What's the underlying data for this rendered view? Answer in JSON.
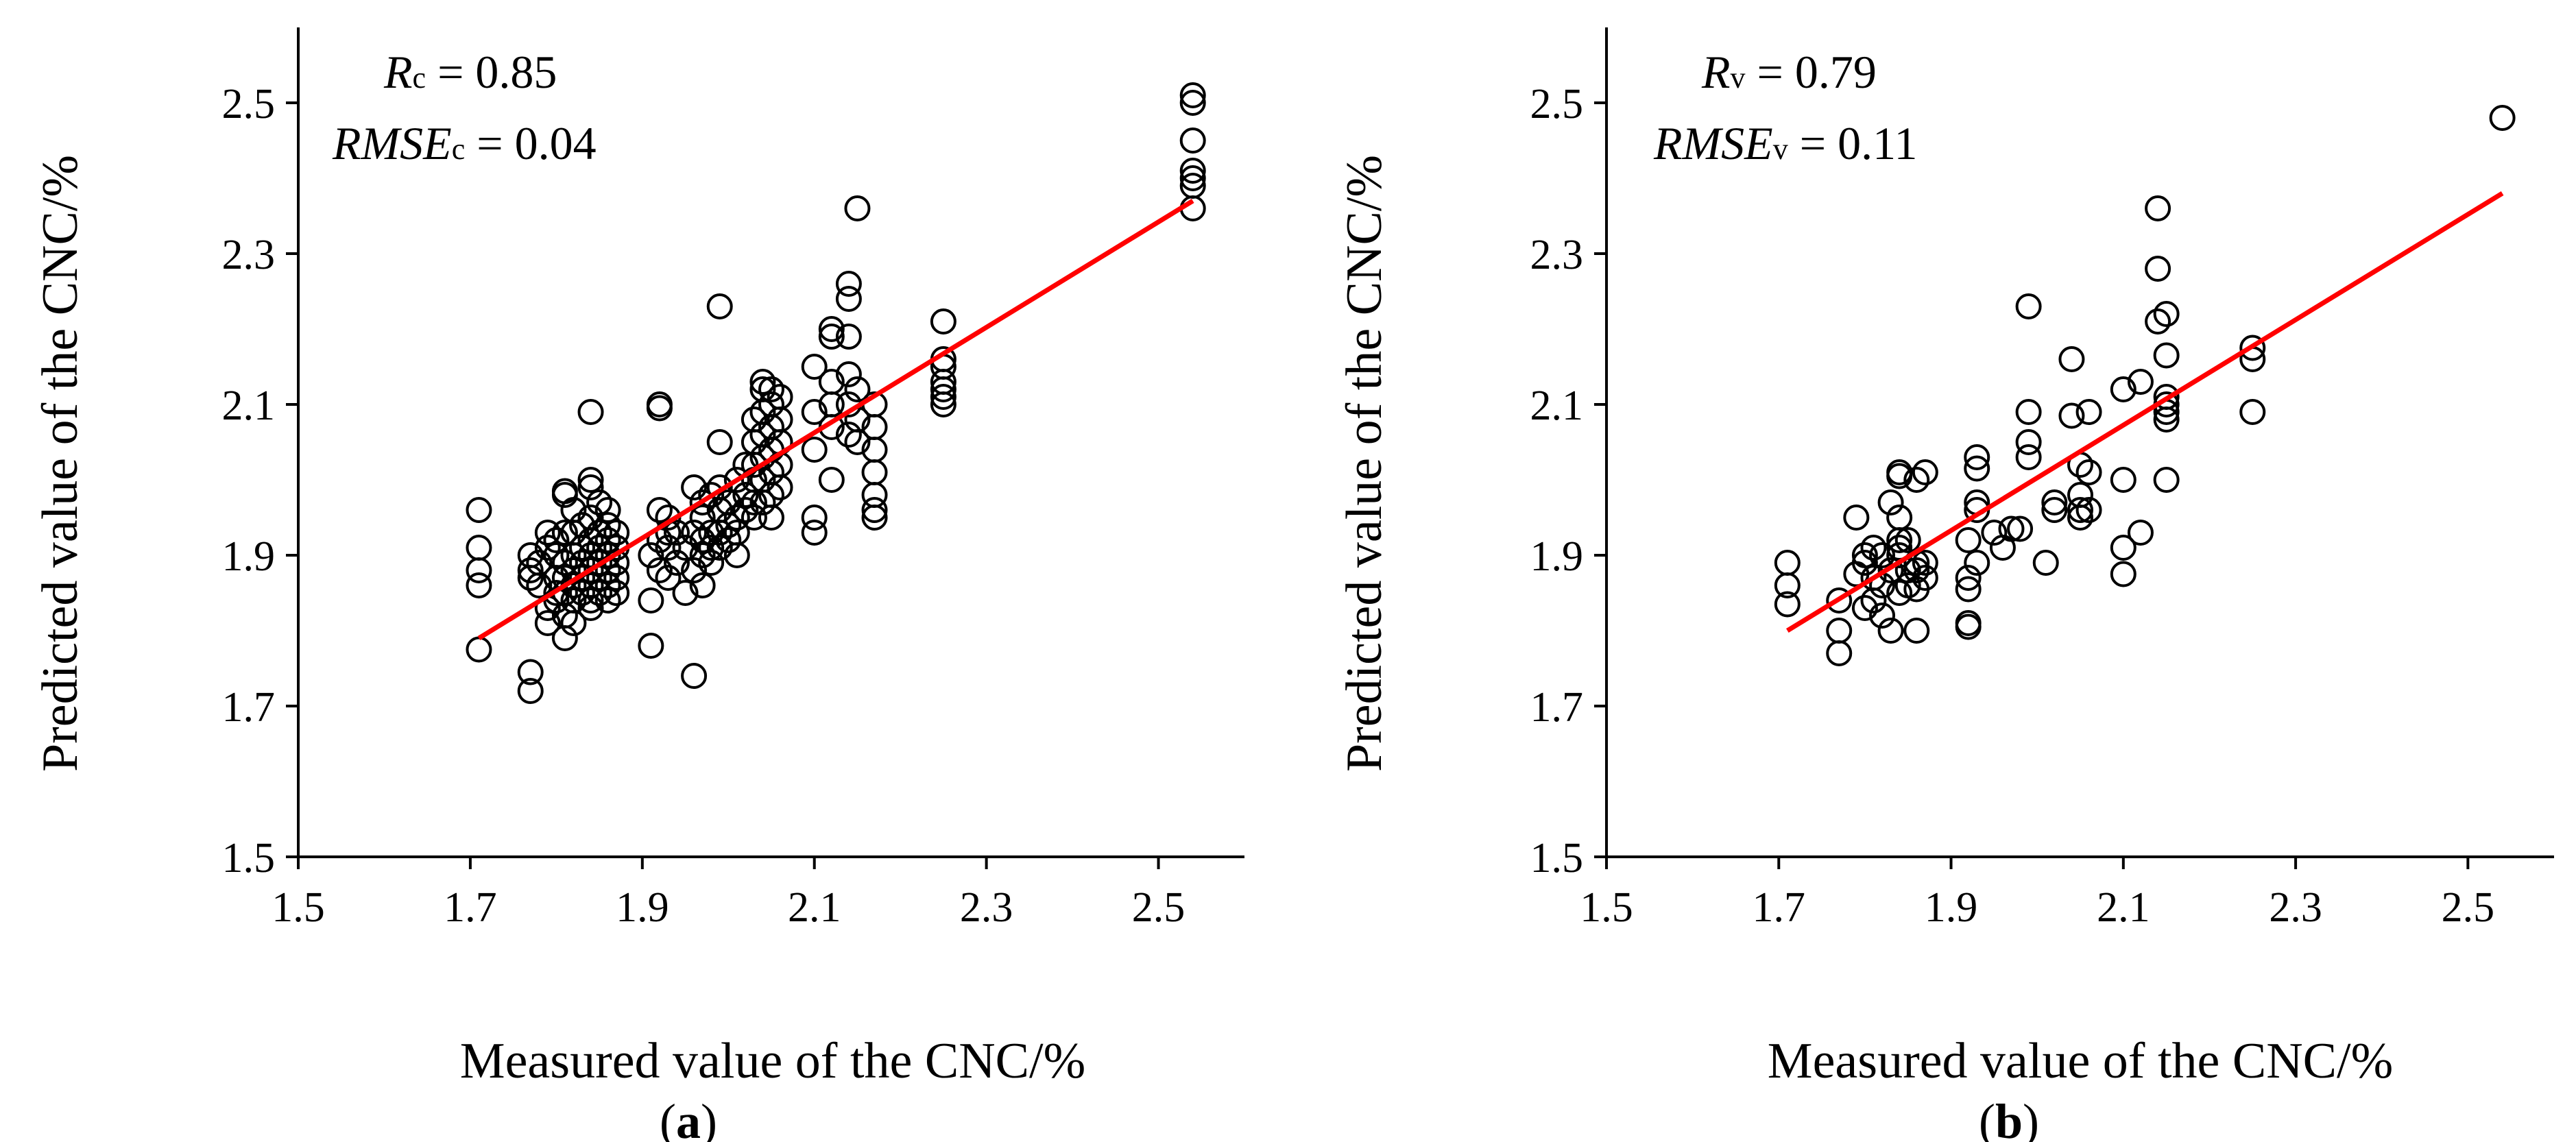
{
  "chart_data": [
    {
      "type": "scatter",
      "panel_label": "a",
      "xlabel": "Measured value of the CNC/%",
      "ylabel": "Predicted value of the CNC/%",
      "xlim": [
        1.5,
        2.6
      ],
      "ylim": [
        1.5,
        2.6
      ],
      "xticks": [
        "1.5",
        "1.7",
        "1.9",
        "2.1",
        "2.3",
        "2.5"
      ],
      "yticks": [
        "1.5",
        "1.7",
        "1.9",
        "2.1",
        "2.3",
        "2.5"
      ],
      "stat_r_symbol": "R",
      "stat_r_sub": "c",
      "stat_r_value": " = 0.85",
      "stat_rmse_symbol": "RMSE",
      "stat_rmse_sub": "c",
      "stat_rmse_value": " = 0.04",
      "fit_line": {
        "x": [
          1.71,
          2.54
        ],
        "y": [
          1.79,
          2.37
        ],
        "color": "#ff0000"
      },
      "points": [
        [
          1.71,
          1.96
        ],
        [
          1.71,
          1.91
        ],
        [
          1.71,
          1.88
        ],
        [
          1.71,
          1.86
        ],
        [
          1.71,
          1.775
        ],
        [
          1.77,
          1.745
        ],
        [
          1.77,
          1.72
        ],
        [
          1.77,
          1.9
        ],
        [
          1.77,
          1.88
        ],
        [
          1.77,
          1.87
        ],
        [
          1.78,
          1.89
        ],
        [
          1.78,
          1.86
        ],
        [
          1.79,
          1.83
        ],
        [
          1.79,
          1.81
        ],
        [
          1.79,
          1.91
        ],
        [
          1.79,
          1.93
        ],
        [
          1.8,
          1.92
        ],
        [
          1.8,
          1.9
        ],
        [
          1.8,
          1.87
        ],
        [
          1.8,
          1.85
        ],
        [
          1.8,
          1.84
        ],
        [
          1.81,
          1.98
        ],
        [
          1.81,
          1.985
        ],
        [
          1.81,
          1.93
        ],
        [
          1.81,
          1.89
        ],
        [
          1.81,
          1.87
        ],
        [
          1.81,
          1.85
        ],
        [
          1.81,
          1.82
        ],
        [
          1.81,
          1.79
        ],
        [
          1.82,
          1.96
        ],
        [
          1.82,
          1.93
        ],
        [
          1.82,
          1.9
        ],
        [
          1.82,
          1.88
        ],
        [
          1.82,
          1.86
        ],
        [
          1.82,
          1.84
        ],
        [
          1.82,
          1.81
        ],
        [
          1.83,
          1.94
        ],
        [
          1.83,
          1.91
        ],
        [
          1.83,
          1.89
        ],
        [
          1.83,
          1.87
        ],
        [
          1.83,
          1.85
        ],
        [
          1.84,
          2.09
        ],
        [
          1.84,
          2.0
        ],
        [
          1.84,
          1.99
        ],
        [
          1.84,
          1.95
        ],
        [
          1.84,
          1.92
        ],
        [
          1.84,
          1.9
        ],
        [
          1.84,
          1.88
        ],
        [
          1.84,
          1.86
        ],
        [
          1.84,
          1.84
        ],
        [
          1.84,
          1.83
        ],
        [
          1.85,
          1.97
        ],
        [
          1.85,
          1.93
        ],
        [
          1.85,
          1.91
        ],
        [
          1.85,
          1.89
        ],
        [
          1.85,
          1.87
        ],
        [
          1.85,
          1.85
        ],
        [
          1.86,
          1.96
        ],
        [
          1.86,
          1.94
        ],
        [
          1.86,
          1.92
        ],
        [
          1.86,
          1.9
        ],
        [
          1.86,
          1.88
        ],
        [
          1.86,
          1.86
        ],
        [
          1.86,
          1.84
        ],
        [
          1.87,
          1.93
        ],
        [
          1.87,
          1.91
        ],
        [
          1.87,
          1.89
        ],
        [
          1.87,
          1.87
        ],
        [
          1.87,
          1.85
        ],
        [
          1.91,
          1.84
        ],
        [
          1.91,
          1.78
        ],
        [
          1.91,
          1.9
        ],
        [
          1.92,
          2.1
        ],
        [
          1.92,
          2.095
        ],
        [
          1.92,
          1.96
        ],
        [
          1.92,
          1.92
        ],
        [
          1.92,
          1.88
        ],
        [
          1.93,
          1.95
        ],
        [
          1.93,
          1.93
        ],
        [
          1.93,
          1.91
        ],
        [
          1.93,
          1.87
        ],
        [
          1.94,
          1.93
        ],
        [
          1.94,
          1.89
        ],
        [
          1.95,
          1.91
        ],
        [
          1.95,
          1.85
        ],
        [
          1.96,
          1.99
        ],
        [
          1.96,
          1.93
        ],
        [
          1.96,
          1.88
        ],
        [
          1.96,
          1.74
        ],
        [
          1.97,
          1.97
        ],
        [
          1.97,
          1.95
        ],
        [
          1.97,
          1.92
        ],
        [
          1.97,
          1.9
        ],
        [
          1.97,
          1.86
        ],
        [
          1.98,
          1.98
        ],
        [
          1.98,
          1.93
        ],
        [
          1.98,
          1.91
        ],
        [
          1.98,
          1.89
        ],
        [
          1.99,
          2.23
        ],
        [
          1.99,
          2.05
        ],
        [
          1.99,
          1.99
        ],
        [
          1.99,
          1.96
        ],
        [
          1.99,
          1.93
        ],
        [
          1.99,
          1.91
        ],
        [
          2.0,
          1.97
        ],
        [
          2.0,
          1.94
        ],
        [
          2.0,
          1.92
        ],
        [
          2.01,
          2.0
        ],
        [
          2.01,
          1.95
        ],
        [
          2.01,
          1.93
        ],
        [
          2.01,
          1.9
        ],
        [
          2.02,
          2.02
        ],
        [
          2.02,
          1.98
        ],
        [
          2.02,
          1.96
        ],
        [
          2.03,
          2.08
        ],
        [
          2.03,
          2.05
        ],
        [
          2.03,
          2.02
        ],
        [
          2.03,
          2.0
        ],
        [
          2.03,
          1.97
        ],
        [
          2.03,
          1.95
        ],
        [
          2.04,
          2.13
        ],
        [
          2.04,
          2.12
        ],
        [
          2.04,
          2.09
        ],
        [
          2.04,
          2.06
        ],
        [
          2.04,
          2.03
        ],
        [
          2.04,
          2.0
        ],
        [
          2.04,
          1.97
        ],
        [
          2.05,
          2.12
        ],
        [
          2.05,
          2.1
        ],
        [
          2.05,
          2.07
        ],
        [
          2.05,
          2.04
        ],
        [
          2.05,
          2.01
        ],
        [
          2.05,
          1.98
        ],
        [
          2.05,
          1.95
        ],
        [
          2.06,
          2.11
        ],
        [
          2.06,
          2.08
        ],
        [
          2.06,
          2.05
        ],
        [
          2.06,
          2.02
        ],
        [
          2.06,
          1.99
        ],
        [
          2.1,
          2.15
        ],
        [
          2.1,
          2.09
        ],
        [
          2.1,
          2.04
        ],
        [
          2.1,
          1.95
        ],
        [
          2.1,
          1.93
        ],
        [
          2.12,
          2.2
        ],
        [
          2.12,
          2.19
        ],
        [
          2.12,
          2.13
        ],
        [
          2.12,
          2.1
        ],
        [
          2.12,
          2.07
        ],
        [
          2.12,
          2.0
        ],
        [
          2.14,
          2.26
        ],
        [
          2.14,
          2.24
        ],
        [
          2.14,
          2.19
        ],
        [
          2.14,
          2.14
        ],
        [
          2.14,
          2.1
        ],
        [
          2.14,
          2.06
        ],
        [
          2.15,
          2.36
        ],
        [
          2.15,
          2.12
        ],
        [
          2.15,
          2.08
        ],
        [
          2.15,
          2.05
        ],
        [
          2.17,
          2.1
        ],
        [
          2.17,
          2.07
        ],
        [
          2.17,
          2.04
        ],
        [
          2.17,
          2.01
        ],
        [
          2.17,
          1.98
        ],
        [
          2.17,
          1.96
        ],
        [
          2.17,
          1.95
        ],
        [
          2.25,
          2.21
        ],
        [
          2.25,
          2.16
        ],
        [
          2.25,
          2.15
        ],
        [
          2.25,
          2.13
        ],
        [
          2.25,
          2.12
        ],
        [
          2.25,
          2.11
        ],
        [
          2.25,
          2.1
        ],
        [
          2.54,
          2.51
        ],
        [
          2.54,
          2.5
        ],
        [
          2.54,
          2.45
        ],
        [
          2.54,
          2.41
        ],
        [
          2.54,
          2.4
        ],
        [
          2.54,
          2.39
        ],
        [
          2.54,
          2.36
        ]
      ]
    },
    {
      "type": "scatter",
      "panel_label": "b",
      "xlabel": "Measured value of the CNC/%",
      "ylabel": "Predicted value of the CNC/%",
      "xlim": [
        1.5,
        2.6
      ],
      "ylim": [
        1.5,
        2.6
      ],
      "xticks": [
        "1.5",
        "1.7",
        "1.9",
        "2.1",
        "2.3",
        "2.5"
      ],
      "yticks": [
        "1.5",
        "1.7",
        "1.9",
        "2.1",
        "2.3",
        "2.5"
      ],
      "stat_r_symbol": "R",
      "stat_r_sub": "v",
      "stat_r_value": " = 0.79",
      "stat_rmse_symbol": "RMSE",
      "stat_rmse_sub": "v",
      "stat_rmse_value": " = 0.11",
      "fit_line": {
        "x": [
          1.71,
          2.54
        ],
        "y": [
          1.8,
          2.38
        ],
        "color": "#ff0000"
      },
      "points": [
        [
          1.71,
          1.89
        ],
        [
          1.71,
          1.86
        ],
        [
          1.71,
          1.835
        ],
        [
          1.77,
          1.8
        ],
        [
          1.77,
          1.77
        ],
        [
          1.77,
          1.84
        ],
        [
          1.79,
          1.95
        ],
        [
          1.79,
          1.875
        ],
        [
          1.8,
          1.9
        ],
        [
          1.8,
          1.89
        ],
        [
          1.8,
          1.83
        ],
        [
          1.81,
          1.91
        ],
        [
          1.81,
          1.87
        ],
        [
          1.81,
          1.84
        ],
        [
          1.82,
          1.9
        ],
        [
          1.82,
          1.86
        ],
        [
          1.82,
          1.82
        ],
        [
          1.83,
          1.97
        ],
        [
          1.83,
          1.88
        ],
        [
          1.83,
          1.8
        ],
        [
          1.84,
          2.01
        ],
        [
          1.84,
          2.005
        ],
        [
          1.84,
          1.95
        ],
        [
          1.84,
          1.92
        ],
        [
          1.84,
          1.91
        ],
        [
          1.84,
          1.9
        ],
        [
          1.84,
          1.85
        ],
        [
          1.85,
          1.92
        ],
        [
          1.85,
          1.88
        ],
        [
          1.85,
          1.86
        ],
        [
          1.86,
          2.0
        ],
        [
          1.86,
          1.89
        ],
        [
          1.86,
          1.88
        ],
        [
          1.86,
          1.855
        ],
        [
          1.86,
          1.8
        ],
        [
          1.87,
          2.01
        ],
        [
          1.87,
          1.89
        ],
        [
          1.87,
          1.87
        ],
        [
          1.92,
          1.92
        ],
        [
          1.92,
          1.87
        ],
        [
          1.92,
          1.855
        ],
        [
          1.92,
          1.81
        ],
        [
          1.92,
          1.805
        ],
        [
          1.93,
          2.03
        ],
        [
          1.93,
          2.015
        ],
        [
          1.93,
          1.97
        ],
        [
          1.93,
          1.96
        ],
        [
          1.93,
          1.89
        ],
        [
          1.95,
          1.93
        ],
        [
          1.96,
          1.91
        ],
        [
          1.97,
          1.935
        ],
        [
          1.98,
          1.935
        ],
        [
          1.99,
          2.23
        ],
        [
          1.99,
          2.09
        ],
        [
          1.99,
          2.05
        ],
        [
          1.99,
          2.03
        ],
        [
          2.01,
          1.89
        ],
        [
          2.02,
          1.97
        ],
        [
          2.02,
          1.96
        ],
        [
          2.04,
          2.16
        ],
        [
          2.04,
          2.085
        ],
        [
          2.05,
          2.02
        ],
        [
          2.05,
          1.98
        ],
        [
          2.05,
          1.96
        ],
        [
          2.05,
          1.95
        ],
        [
          2.06,
          2.09
        ],
        [
          2.06,
          2.01
        ],
        [
          2.06,
          1.96
        ],
        [
          2.1,
          2.12
        ],
        [
          2.1,
          2.0
        ],
        [
          2.1,
          1.91
        ],
        [
          2.1,
          1.875
        ],
        [
          2.12,
          2.13
        ],
        [
          2.12,
          1.93
        ],
        [
          2.14,
          2.36
        ],
        [
          2.14,
          2.28
        ],
        [
          2.14,
          2.21
        ],
        [
          2.15,
          2.22
        ],
        [
          2.15,
          2.165
        ],
        [
          2.15,
          2.11
        ],
        [
          2.15,
          2.1
        ],
        [
          2.15,
          2.09
        ],
        [
          2.15,
          2.08
        ],
        [
          2.15,
          2.0
        ],
        [
          2.25,
          2.175
        ],
        [
          2.25,
          2.16
        ],
        [
          2.25,
          2.09
        ],
        [
          2.54,
          2.48
        ]
      ]
    }
  ]
}
